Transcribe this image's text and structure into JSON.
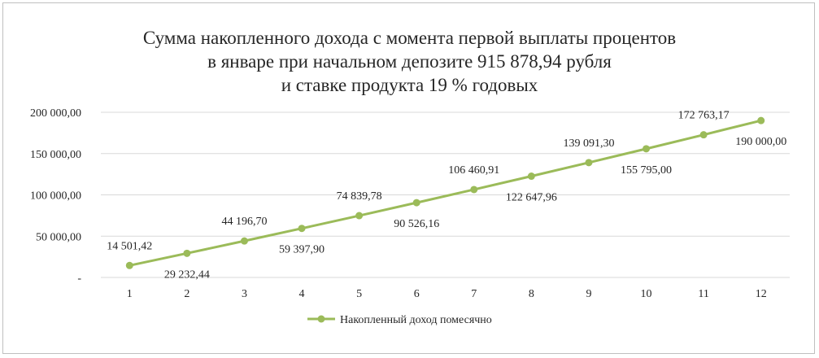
{
  "chart_data": {
    "type": "line",
    "title": "Сумма накопленного дохода с момента первой выплаты процентов\n в январе при начальном депозите 915 878,94 рубля\nи ставке продукта 19 % годовых",
    "x": [
      "1",
      "2",
      "3",
      "4",
      "5",
      "6",
      "7",
      "8",
      "9",
      "10",
      "11",
      "12"
    ],
    "series": [
      {
        "name": "Накопленный доход помесячно",
        "color": "#9bbb59",
        "values": [
          14501.42,
          29232.44,
          44196.7,
          59397.9,
          74839.78,
          90526.16,
          106460.91,
          122647.96,
          139091.3,
          155795.0,
          172763.17,
          190000.0
        ],
        "labels": [
          "14 501,42",
          "29 232,44",
          "44 196,70",
          "59 397,90",
          "74 839,78",
          "90 526,16",
          "106 460,91",
          "122 647,96",
          "139 091,30",
          "155 795,00",
          "172 763,17",
          "190 000,00"
        ]
      }
    ],
    "ylim": [
      0,
      200000
    ],
    "yticks": [
      0,
      50000,
      100000,
      150000,
      200000
    ],
    "ytick_labels": [
      "-",
      "50 000,00",
      "100 000,00",
      "150 000,00",
      "200 000,00"
    ],
    "grid": true,
    "legend": "bottom"
  }
}
